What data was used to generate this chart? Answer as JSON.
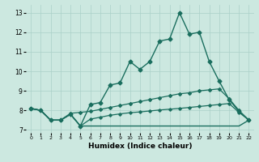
{
  "title": "",
  "xlabel": "Humidex (Indice chaleur)",
  "bg_color": "#cce8e0",
  "grid_color": "#aad0c8",
  "line_color": "#1a6e5e",
  "xlim": [
    -0.5,
    22.5
  ],
  "ylim": [
    6.85,
    13.4
  ],
  "xticks": [
    0,
    1,
    2,
    3,
    4,
    5,
    6,
    7,
    8,
    9,
    10,
    11,
    12,
    13,
    14,
    15,
    16,
    17,
    18,
    19,
    20,
    21,
    22
  ],
  "yticks": [
    7,
    8,
    9,
    10,
    11,
    12,
    13
  ],
  "series": [
    {
      "x": [
        0,
        1,
        2,
        3,
        4,
        5,
        6,
        7,
        8,
        9,
        10,
        11,
        12,
        13,
        14,
        15,
        16,
        17,
        18,
        19,
        20,
        21,
        22
      ],
      "y": [
        8.1,
        8.0,
        7.5,
        7.5,
        7.8,
        7.2,
        8.3,
        8.4,
        9.3,
        9.4,
        10.5,
        10.1,
        10.5,
        11.55,
        11.65,
        13.0,
        11.9,
        12.0,
        10.5,
        9.5,
        8.55,
        7.95,
        7.5
      ],
      "marker": "D",
      "markersize": 2.5,
      "linewidth": 1.0
    },
    {
      "x": [
        0,
        1,
        2,
        3,
        4,
        5,
        6,
        7,
        8,
        9,
        10,
        11,
        12,
        13,
        14,
        15,
        16,
        17,
        18,
        19,
        20,
        21,
        22
      ],
      "y": [
        8.1,
        8.0,
        7.5,
        7.5,
        7.85,
        7.9,
        7.95,
        8.05,
        8.15,
        8.25,
        8.35,
        8.45,
        8.55,
        8.65,
        8.75,
        8.85,
        8.9,
        9.0,
        9.05,
        9.1,
        8.6,
        8.0,
        7.5
      ],
      "marker": "D",
      "markersize": 2.0,
      "linewidth": 0.9
    },
    {
      "x": [
        0,
        1,
        2,
        3,
        4,
        5,
        6,
        7,
        8,
        9,
        10,
        11,
        12,
        13,
        14,
        15,
        16,
        17,
        18,
        19,
        20,
        21,
        22
      ],
      "y": [
        8.1,
        8.0,
        7.5,
        7.5,
        7.8,
        7.2,
        7.55,
        7.65,
        7.75,
        7.82,
        7.88,
        7.92,
        7.97,
        8.02,
        8.06,
        8.1,
        8.15,
        8.2,
        8.25,
        8.3,
        8.35,
        7.9,
        7.5
      ],
      "marker": "D",
      "markersize": 1.8,
      "linewidth": 0.9
    },
    {
      "x": [
        0,
        1,
        2,
        3,
        4,
        5,
        6,
        7,
        8,
        9,
        10,
        11,
        12,
        13,
        14,
        15,
        16,
        17,
        18,
        19,
        20,
        21,
        22
      ],
      "y": [
        8.1,
        8.0,
        7.5,
        7.5,
        7.8,
        7.2,
        7.2,
        7.2,
        7.2,
        7.2,
        7.2,
        7.2,
        7.2,
        7.2,
        7.2,
        7.2,
        7.2,
        7.2,
        7.2,
        7.2,
        7.2,
        7.2,
        7.5
      ],
      "marker": null,
      "markersize": 0,
      "linewidth": 1.0
    }
  ]
}
